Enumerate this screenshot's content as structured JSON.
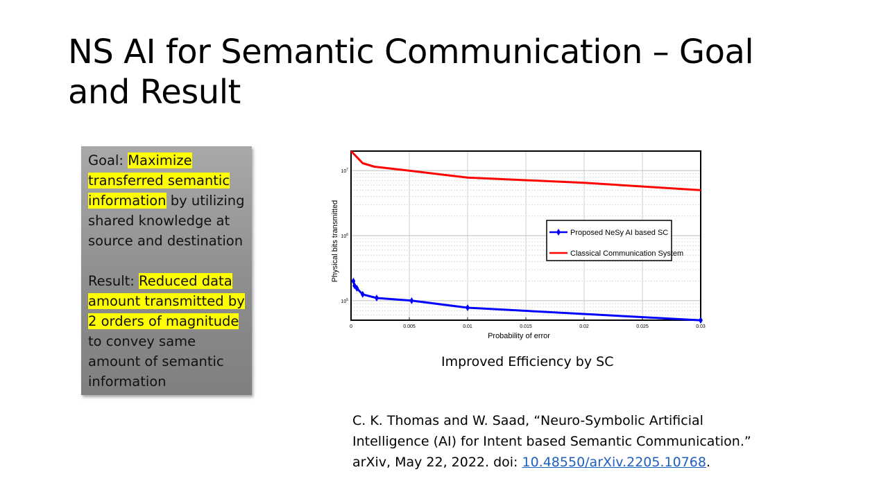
{
  "slide": {
    "title": "NS AI for Semantic Communication – Goal and Result"
  },
  "goal": {
    "label": "Goal: ",
    "highlight": "Maximize transferred semantic information",
    "rest": " by utilizing shared knowledge at source and destination"
  },
  "result": {
    "label": "Result: ",
    "highlight": "Reduced data amount transmitted by 2 orders of magnitude",
    "rest": " to convey same amount of semantic information"
  },
  "caption": "Improved Efficiency by SC",
  "reference": {
    "text": "C. K. Thomas and W. Saad, “Neuro-Symbolic Artificial Intelligence (AI) for Intent based Semantic Communication.” arXiv, May 22, 2022. doi: ",
    "link": "10.48550/arXiv.2205.10768",
    "end": "."
  },
  "colors": {
    "highlight": "#ffff00",
    "proposed": "#0000ff",
    "classical": "#ff0000",
    "link": "#1f5fbf"
  },
  "chart_data": {
    "type": "line",
    "title": "",
    "xlabel": "Probability of error",
    "ylabel": "Physical bits transmitted",
    "yscale": "log",
    "xlim": [
      0,
      0.03
    ],
    "ylim_log10": [
      4.7,
      7.3
    ],
    "xticks": [
      0,
      0.005,
      0.01,
      0.015,
      0.02,
      0.025,
      0.03
    ],
    "xtick_labels": [
      "0",
      "0.005",
      "0.01",
      "0.015",
      "0.02",
      "0.025",
      "0.03"
    ],
    "yticks_log10": [
      5,
      6,
      7
    ],
    "ytick_labels": [
      "10^5",
      "10^6",
      "10^7"
    ],
    "grid": true,
    "legend_position": "center-right",
    "series": [
      {
        "name": "Proposed NeSy AI based SC",
        "color": "#0000ff",
        "marker": "diamond",
        "x": [
          0.0002,
          0.0003,
          0.0005,
          0.001,
          0.0022,
          0.0052,
          0.01,
          0.03
        ],
        "y": [
          200000,
          170000,
          155000,
          125000,
          110000,
          100000,
          78000,
          50000
        ]
      },
      {
        "name": "Classical Communication System",
        "color": "#ff0000",
        "marker": "none",
        "x": [
          0,
          0.001,
          0.002,
          0.005,
          0.01,
          0.02,
          0.03
        ],
        "y": [
          20000000,
          13000000,
          11500000,
          10000000,
          7800000,
          6500000,
          5000000
        ]
      }
    ]
  }
}
